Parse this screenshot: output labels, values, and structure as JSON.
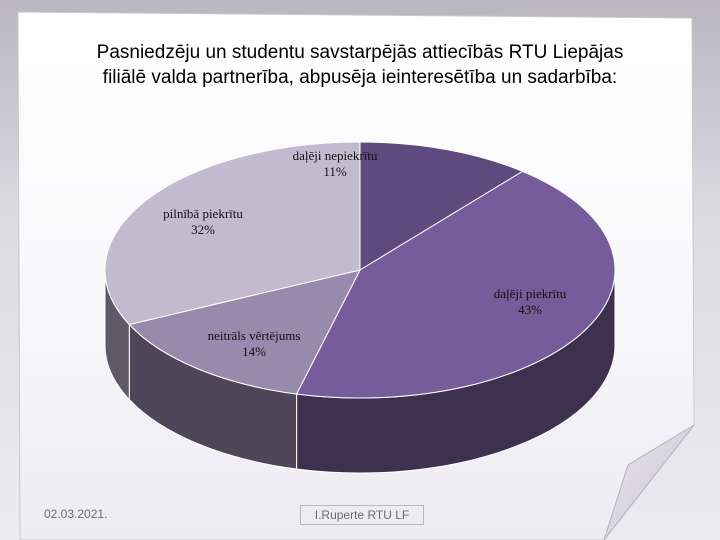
{
  "slide": {
    "title_line1": "Pasniedzēju un studentu savstarpējās attiecībās RTU Liepājas",
    "title_line2": "filiālē valda partnerība, abpusēja ieinteresētība un sadarbība:",
    "footer_date": "02.03.2021.",
    "footer_author": "I.Ruperte RTU LF"
  },
  "chart_data": {
    "type": "pie",
    "style": "3d",
    "title": "Pasniedzēju un studentu savstarpējās attiecībās RTU Liepājas filiālē valda partnerība, abpusēja ieinteresētība un sadarbība:",
    "legend": "none",
    "slices": [
      {
        "label": "daļēji nepiekrītu",
        "value": 11,
        "value_label": "11%",
        "color": "#5e4a7c",
        "side_color": "#3a2d4e"
      },
      {
        "label": "daļēji piekrītu",
        "value": 43,
        "value_label": "43%",
        "color": "#765c9b",
        "side_color": "#3e3150"
      },
      {
        "label": "neitrāls vērtējums",
        "value": 14,
        "value_label": "14%",
        "color": "#978aad",
        "side_color": "#4d4558"
      },
      {
        "label": "pilnībā piekrītu",
        "value": 32,
        "value_label": "32%",
        "color": "#c2bbd0",
        "side_color": "#5f5a68"
      }
    ]
  }
}
